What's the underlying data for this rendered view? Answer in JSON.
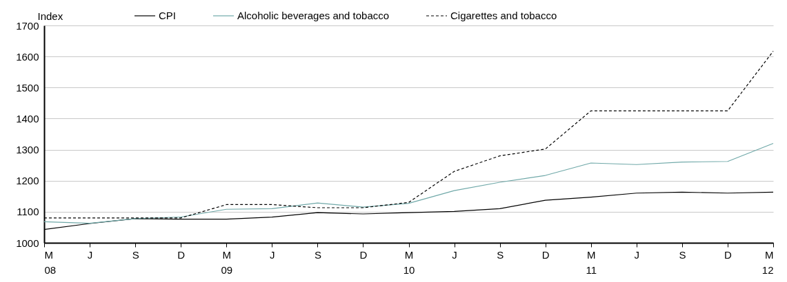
{
  "chart_data": {
    "type": "line",
    "ylabel": "Index",
    "categories": [
      "M\n08",
      "J",
      "S",
      "D",
      "M\n09",
      "J",
      "S",
      "D",
      "M\n10",
      "J",
      "S",
      "D",
      "M\n11",
      "J",
      "S",
      "D",
      "M\n12"
    ],
    "series": [
      {
        "name": "CPI",
        "color": "#000000",
        "line_style": "solid",
        "values": [
          1043,
          1062,
          1078,
          1076,
          1076,
          1083,
          1097,
          1093,
          1097,
          1101,
          1110,
          1137,
          1147,
          1160,
          1163,
          1160,
          1163
        ]
      },
      {
        "name": "Alcoholic beverages and tobacco",
        "color": "#6fa8a8",
        "line_style": "solid",
        "values": [
          1068,
          1063,
          1078,
          1083,
          1108,
          1110,
          1128,
          1115,
          1127,
          1168,
          1195,
          1217,
          1257,
          1252,
          1260,
          1262,
          1320
        ]
      },
      {
        "name": "Cigarettes and tobacco",
        "color": "#000000",
        "line_style": "dashed",
        "values": [
          1080,
          1080,
          1080,
          1080,
          1123,
          1123,
          1113,
          1113,
          1130,
          1230,
          1280,
          1302,
          1425,
          1425,
          1425,
          1425,
          1617
        ]
      }
    ],
    "ylim": [
      1000,
      1700
    ],
    "yticks": [
      1000,
      1100,
      1200,
      1300,
      1400,
      1500,
      1600,
      1700
    ],
    "grid": "y",
    "legend": "top",
    "marker": "none"
  }
}
